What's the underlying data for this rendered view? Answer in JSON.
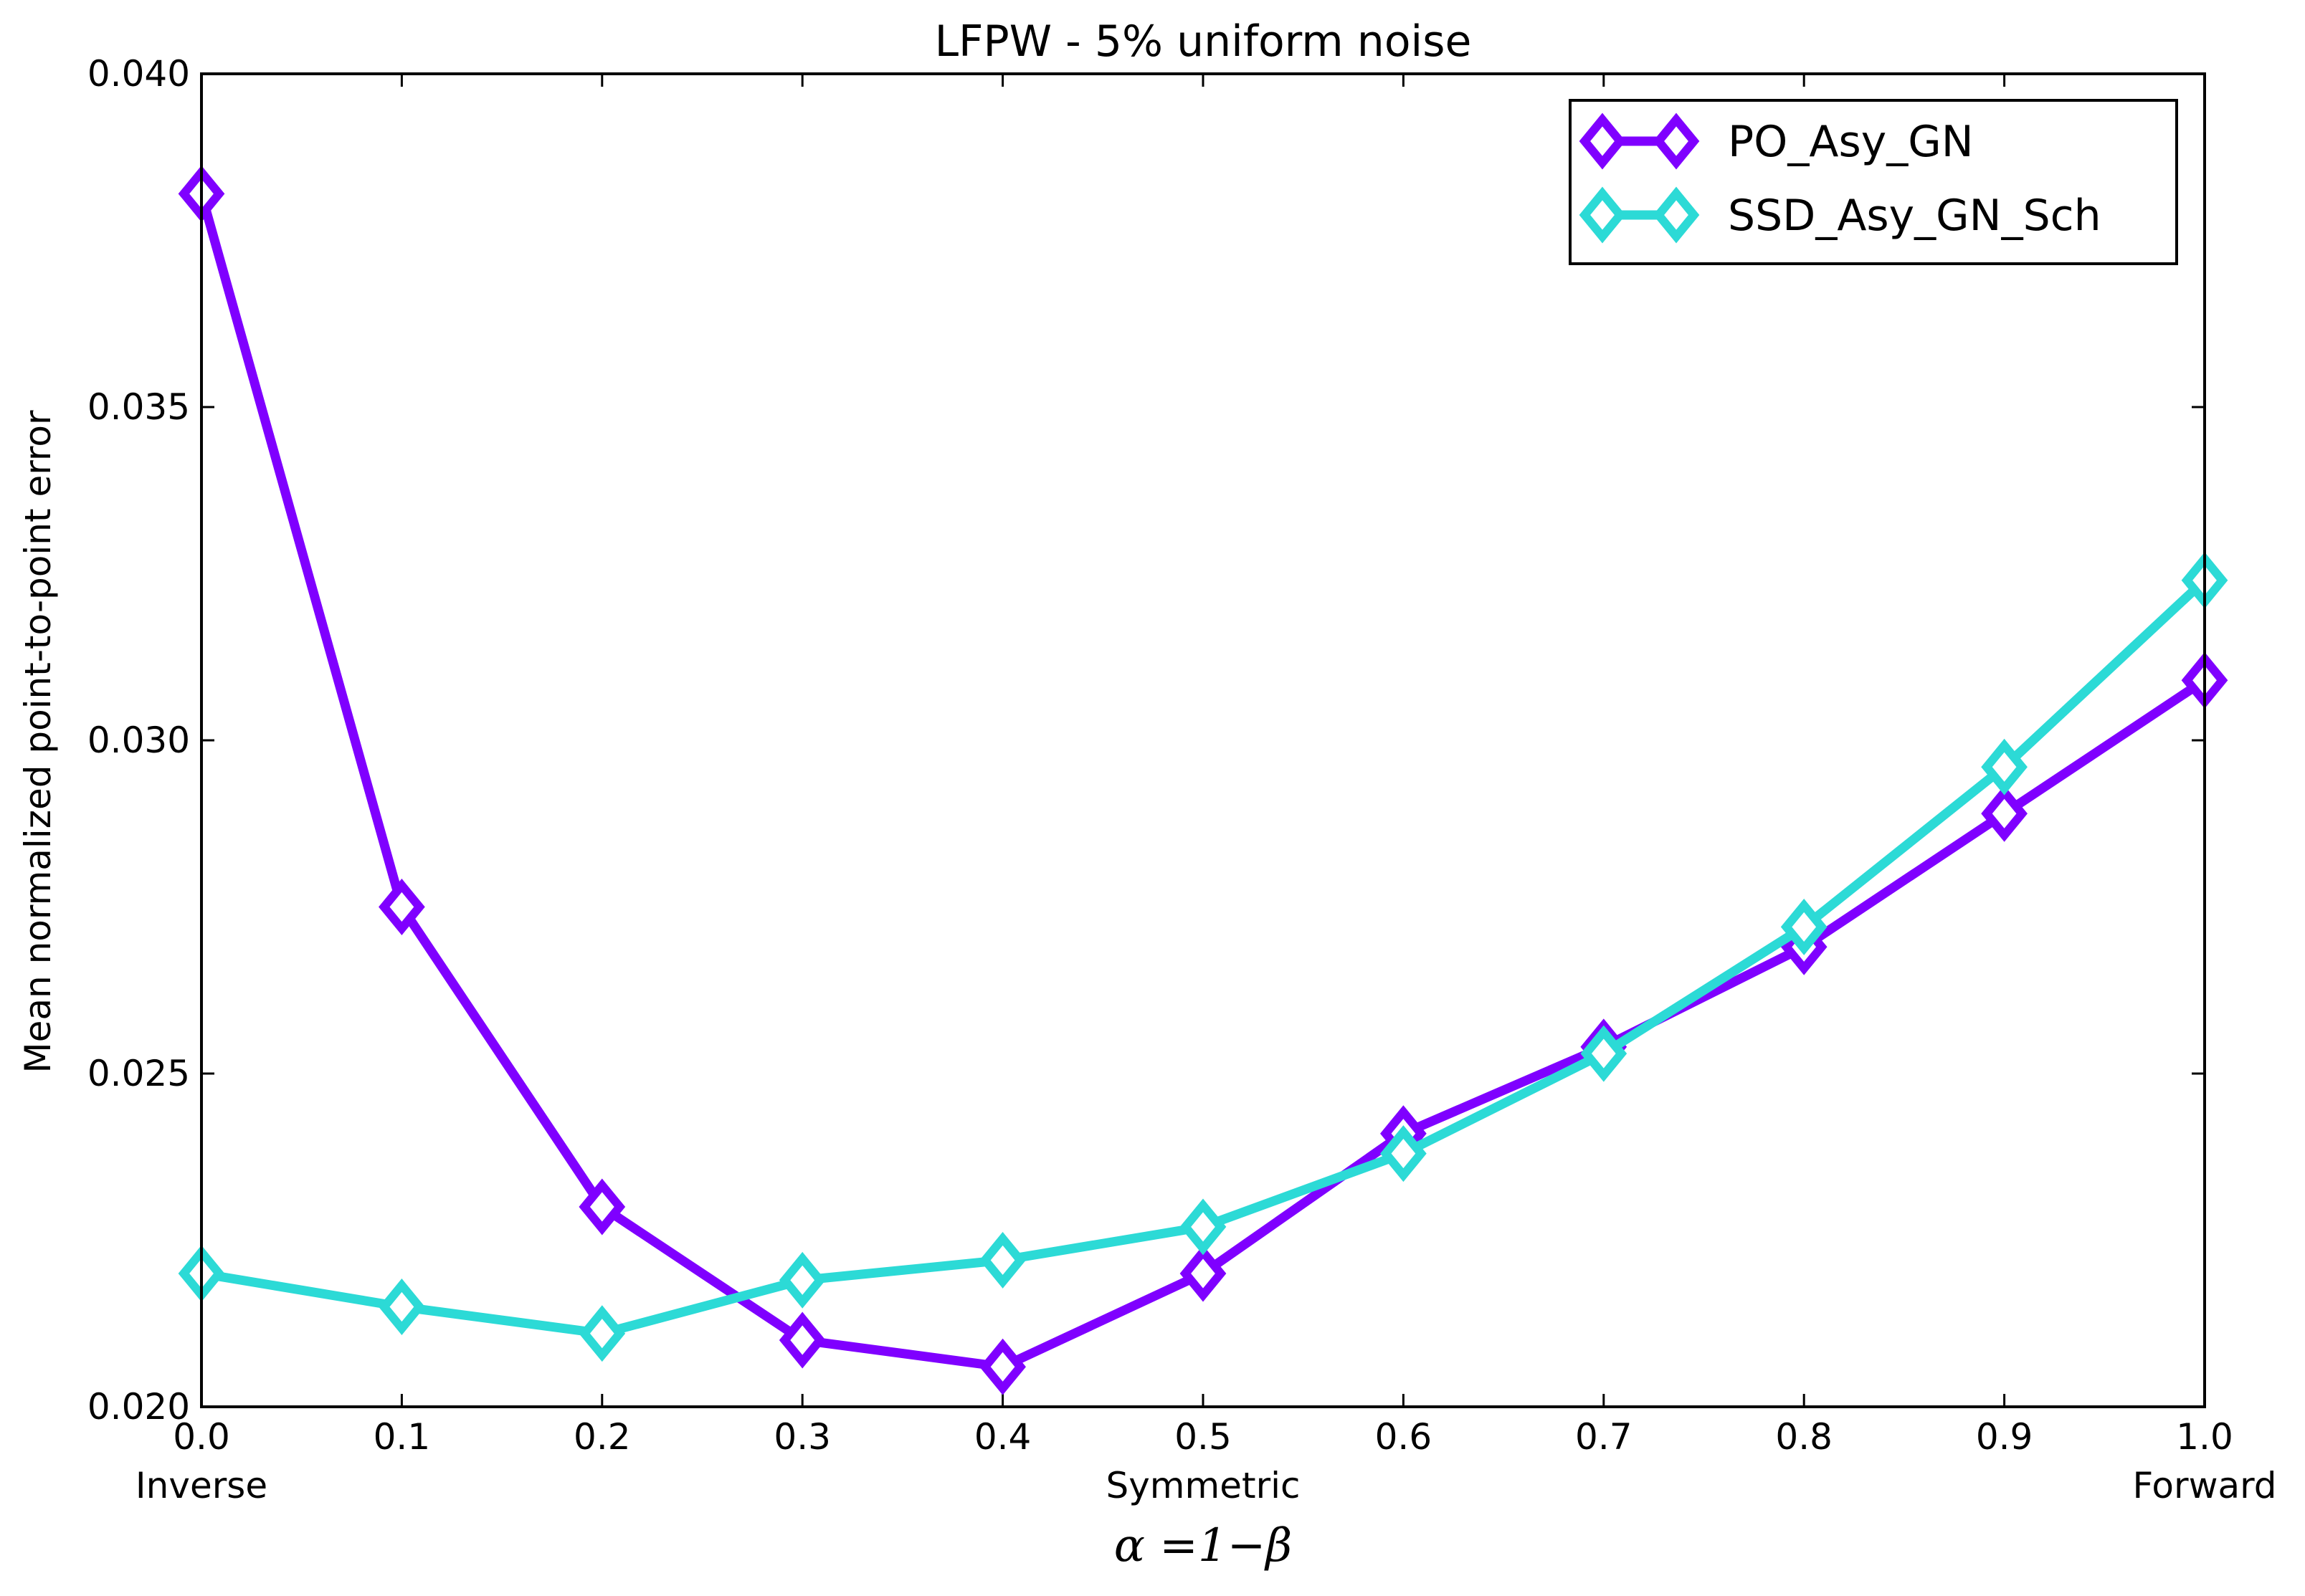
{
  "chart_data": {
    "type": "line",
    "title": "LFPW - 5% uniform noise",
    "xlabel": "α =1−β",
    "ylabel": "Mean normalized point-to-point error",
    "xlim": [
      0.0,
      1.0
    ],
    "ylim": [
      0.02,
      0.04
    ],
    "x": [
      0.0,
      0.1,
      0.2,
      0.3,
      0.4,
      0.5,
      0.6,
      0.7,
      0.8,
      0.9,
      1.0
    ],
    "x_tick_labels": [
      "0.0",
      "0.1",
      "0.2",
      "0.3",
      "0.4",
      "0.5",
      "0.6",
      "0.7",
      "0.8",
      "0.9",
      "1.0"
    ],
    "x_tick_sublabels": [
      {
        "x": 0.0,
        "text": "Inverse"
      },
      {
        "x": 0.5,
        "text": "Symmetric"
      },
      {
        "x": 1.0,
        "text": "Forward"
      }
    ],
    "y_ticks": [
      0.02,
      0.025,
      0.03,
      0.035,
      0.04
    ],
    "y_tick_labels": [
      "0.020",
      "0.025",
      "0.030",
      "0.035",
      "0.040"
    ],
    "grid": false,
    "legend_position": "top-right",
    "marker": "diamond",
    "series": [
      {
        "name": "PO_Asy_GN",
        "color": "#7f00ff",
        "values": [
          0.0382,
          0.0275,
          0.023,
          0.021,
          0.0206,
          0.022,
          0.0241,
          0.0254,
          0.0269,
          0.0289,
          0.0309
        ]
      },
      {
        "name": "SSD_Asy_GN_Sch",
        "color": "#2cdad6",
        "values": [
          0.022,
          0.0215,
          0.0211,
          0.0219,
          0.0222,
          0.0227,
          0.0238,
          0.0253,
          0.0272,
          0.0296,
          0.0324
        ]
      }
    ]
  }
}
